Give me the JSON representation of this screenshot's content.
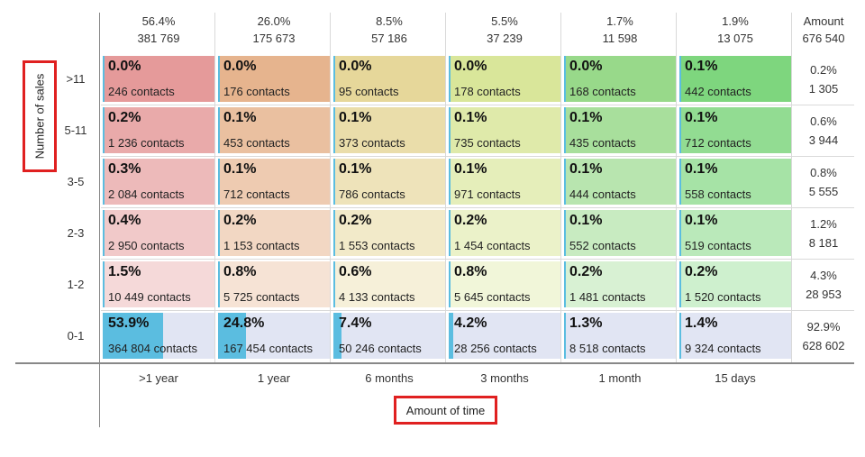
{
  "chart_data": {
    "type": "heatmap",
    "xlabel": "Amount of time",
    "ylabel": "Number of sales",
    "columns": [
      {
        "label": ">1 year",
        "pct": "56.4%",
        "count": "381 769",
        "color": "#e59a9a"
      },
      {
        "label": "1 year",
        "pct": "26.0%",
        "count": "175 673",
        "color": "#e6b48e"
      },
      {
        "label": "6 months",
        "pct": "8.5%",
        "count": "57 186",
        "color": "#e6d79a"
      },
      {
        "label": "3 months",
        "pct": "5.5%",
        "count": "37 239",
        "color": "#d9e69a"
      },
      {
        "label": "1 month",
        "pct": "1.7%",
        "count": "11 598",
        "color": "#98d98a"
      },
      {
        "label": "15 days",
        "pct": "1.9%",
        "count": "13 075",
        "color": "#7ed67e"
      }
    ],
    "total_header": "Amount",
    "grand_total": "676 540",
    "rows": [
      {
        "label": ">11",
        "total_pct": "0.2%",
        "total_count": "1 305",
        "cells": [
          {
            "pct": "0.0%",
            "contacts": "246 contacts",
            "share": 0.0
          },
          {
            "pct": "0.0%",
            "contacts": "176 contacts",
            "share": 0.0
          },
          {
            "pct": "0.0%",
            "contacts": "95 contacts",
            "share": 0.0
          },
          {
            "pct": "0.0%",
            "contacts": "178 contacts",
            "share": 0.0
          },
          {
            "pct": "0.0%",
            "contacts": "168 contacts",
            "share": 0.0
          },
          {
            "pct": "0.1%",
            "contacts": "442 contacts",
            "share": 0.1
          }
        ]
      },
      {
        "label": "5-11",
        "total_pct": "0.6%",
        "total_count": "3 944",
        "cells": [
          {
            "pct": "0.2%",
            "contacts": "1 236 contacts",
            "share": 0.2
          },
          {
            "pct": "0.1%",
            "contacts": "453 contacts",
            "share": 0.1
          },
          {
            "pct": "0.1%",
            "contacts": "373 contacts",
            "share": 0.1
          },
          {
            "pct": "0.1%",
            "contacts": "735 contacts",
            "share": 0.1
          },
          {
            "pct": "0.1%",
            "contacts": "435 contacts",
            "share": 0.1
          },
          {
            "pct": "0.1%",
            "contacts": "712 contacts",
            "share": 0.1
          }
        ]
      },
      {
        "label": "3-5",
        "total_pct": "0.8%",
        "total_count": "5 555",
        "cells": [
          {
            "pct": "0.3%",
            "contacts": "2 084 contacts",
            "share": 0.3
          },
          {
            "pct": "0.1%",
            "contacts": "712 contacts",
            "share": 0.1
          },
          {
            "pct": "0.1%",
            "contacts": "786 contacts",
            "share": 0.1
          },
          {
            "pct": "0.1%",
            "contacts": "971 contacts",
            "share": 0.1
          },
          {
            "pct": "0.1%",
            "contacts": "444 contacts",
            "share": 0.1
          },
          {
            "pct": "0.1%",
            "contacts": "558 contacts",
            "share": 0.1
          }
        ]
      },
      {
        "label": "2-3",
        "total_pct": "1.2%",
        "total_count": "8 181",
        "cells": [
          {
            "pct": "0.4%",
            "contacts": "2 950 contacts",
            "share": 0.4
          },
          {
            "pct": "0.2%",
            "contacts": "1 153 contacts",
            "share": 0.2
          },
          {
            "pct": "0.2%",
            "contacts": "1 553 contacts",
            "share": 0.2
          },
          {
            "pct": "0.2%",
            "contacts": "1 454 contacts",
            "share": 0.2
          },
          {
            "pct": "0.1%",
            "contacts": "552 contacts",
            "share": 0.1
          },
          {
            "pct": "0.1%",
            "contacts": "519 contacts",
            "share": 0.1
          }
        ]
      },
      {
        "label": "1-2",
        "total_pct": "4.3%",
        "total_count": "28 953",
        "cells": [
          {
            "pct": "1.5%",
            "contacts": "10 449 contacts",
            "share": 1.5
          },
          {
            "pct": "0.8%",
            "contacts": "5 725 contacts",
            "share": 0.8
          },
          {
            "pct": "0.6%",
            "contacts": "4 133 contacts",
            "share": 0.6
          },
          {
            "pct": "0.8%",
            "contacts": "5 645 contacts",
            "share": 0.8
          },
          {
            "pct": "0.2%",
            "contacts": "1 481 contacts",
            "share": 0.2
          },
          {
            "pct": "0.2%",
            "contacts": "1 520 contacts",
            "share": 0.2
          }
        ]
      },
      {
        "label": "0-1",
        "total_pct": "92.9%",
        "total_count": "628 602",
        "baseline": true,
        "cells": [
          {
            "pct": "53.9%",
            "contacts": "364 804 contacts",
            "share": 53.9
          },
          {
            "pct": "24.8%",
            "contacts": "167 454 contacts",
            "share": 24.8
          },
          {
            "pct": "7.4%",
            "contacts": "50 246 contacts",
            "share": 7.4
          },
          {
            "pct": "4.2%",
            "contacts": "28 256 contacts",
            "share": 4.2
          },
          {
            "pct": "1.3%",
            "contacts": "8 518 contacts",
            "share": 1.3
          },
          {
            "pct": "1.4%",
            "contacts": "9 324 contacts",
            "share": 1.4
          }
        ]
      }
    ],
    "colors": {
      "bar": "#5bbde0",
      "baseline_bg": "#e1e5f3",
      "highlight": "#e02020"
    }
  }
}
